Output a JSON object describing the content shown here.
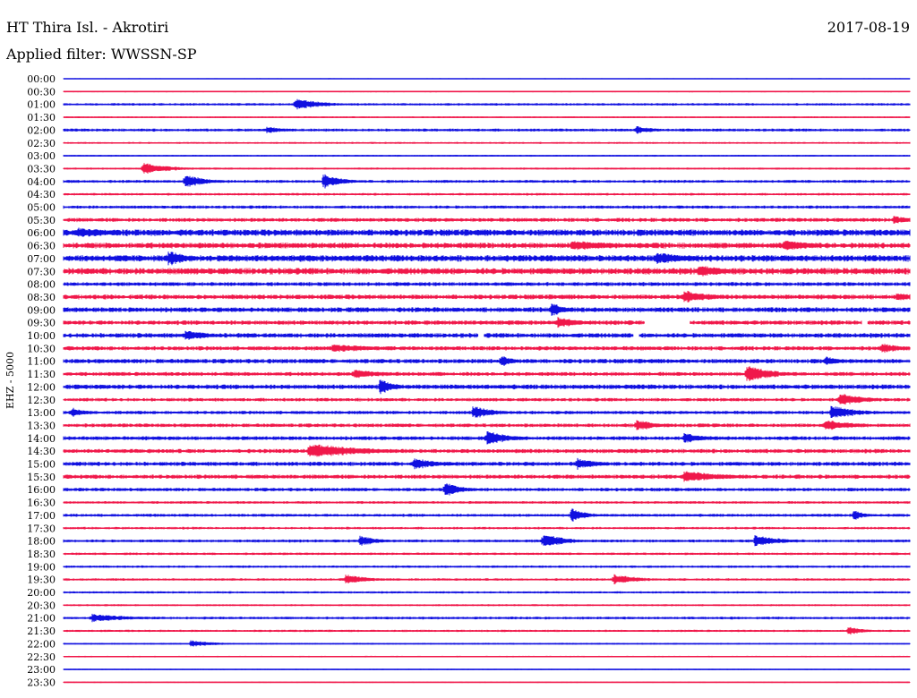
{
  "chart_data": {
    "type": "line",
    "title": "HT Thira Isl. - Akrotiri",
    "date": "2017-08-19",
    "subtitle": "Applied filter: WWSSN-SP",
    "ylabel": "EHZ - 5000",
    "grid": false,
    "colors": {
      "even": "#1010e0",
      "odd": "#f0184a",
      "text": "#000000"
    },
    "tick_labels": [
      "00:00",
      "00:30",
      "01:00",
      "01:30",
      "02:00",
      "02:30",
      "03:00",
      "03:30",
      "04:00",
      "04:30",
      "05:00",
      "05:30",
      "06:00",
      "06:30",
      "07:00",
      "07:30",
      "08:00",
      "08:30",
      "09:00",
      "09:30",
      "10:00",
      "10:30",
      "11:00",
      "11:30",
      "12:00",
      "12:30",
      "13:00",
      "13:30",
      "14:00",
      "14:30",
      "15:00",
      "15:30",
      "16:00",
      "16:30",
      "17:00",
      "17:30",
      "18:00",
      "18:30",
      "19:00",
      "19:30",
      "20:00",
      "20:30",
      "21:00",
      "21:30",
      "22:00",
      "22:30",
      "23:00",
      "23:30"
    ],
    "noise_level": [
      0.4,
      0.6,
      1.0,
      0.7,
      1.2,
      0.8,
      0.7,
      0.8,
      1.2,
      1.0,
      1.3,
      1.6,
      2.6,
      2.3,
      2.6,
      2.6,
      1.6,
      1.9,
      2.0,
      1.8,
      1.9,
      1.7,
      1.8,
      1.6,
      1.9,
      1.4,
      1.4,
      1.5,
      1.6,
      1.7,
      1.7,
      1.7,
      1.4,
      1.1,
      1.2,
      1.0,
      1.2,
      1.0,
      1.0,
      1.0,
      0.9,
      0.8,
      1.1,
      0.9,
      0.7,
      0.6,
      0.5,
      0.5
    ],
    "events": [
      {
        "trace": "01:00",
        "t": 8.2,
        "amp": 7,
        "dur": 1.0
      },
      {
        "trace": "02:00",
        "t": 7.2,
        "amp": 4,
        "dur": 0.8
      },
      {
        "trace": "02:00",
        "t": 20.3,
        "amp": 5,
        "dur": 0.7
      },
      {
        "trace": "03:30",
        "t": 2.8,
        "amp": 7,
        "dur": 1.0
      },
      {
        "trace": "04:00",
        "t": 4.3,
        "amp": 8,
        "dur": 0.8
      },
      {
        "trace": "04:00",
        "t": 9.2,
        "amp": 9,
        "dur": 0.7
      },
      {
        "trace": "05:30",
        "t": 29.4,
        "amp": 5,
        "dur": 0.8
      },
      {
        "trace": "06:00",
        "t": 0.5,
        "amp": 6,
        "dur": 1.5
      },
      {
        "trace": "06:30",
        "t": 18.0,
        "amp": 6,
        "dur": 2.0
      },
      {
        "trace": "06:30",
        "t": 25.5,
        "amp": 6,
        "dur": 1.5
      },
      {
        "trace": "07:00",
        "t": 3.7,
        "amp": 9,
        "dur": 0.8
      },
      {
        "trace": "07:00",
        "t": 21.0,
        "amp": 7,
        "dur": 1.5
      },
      {
        "trace": "07:30",
        "t": 22.5,
        "amp": 8,
        "dur": 1.0
      },
      {
        "trace": "08:30",
        "t": 22.0,
        "amp": 8,
        "dur": 1.0
      },
      {
        "trace": "08:30",
        "t": 29.5,
        "amp": 5,
        "dur": 1.0
      },
      {
        "trace": "09:00",
        "t": 17.3,
        "amp": 8,
        "dur": 0.6
      },
      {
        "trace": "09:30",
        "t": 17.5,
        "amp": 7,
        "dur": 0.8
      },
      {
        "trace": "10:00",
        "t": 4.3,
        "amp": 6,
        "dur": 1.0
      },
      {
        "trace": "10:30",
        "t": 9.5,
        "amp": 5,
        "dur": 2.0
      },
      {
        "trace": "10:30",
        "t": 29.0,
        "amp": 6,
        "dur": 0.8
      },
      {
        "trace": "11:00",
        "t": 15.5,
        "amp": 7,
        "dur": 0.5
      },
      {
        "trace": "11:00",
        "t": 27.0,
        "amp": 6,
        "dur": 0.6
      },
      {
        "trace": "11:30",
        "t": 10.3,
        "amp": 6,
        "dur": 1.0
      },
      {
        "trace": "11:30",
        "t": 24.2,
        "amp": 10,
        "dur": 1.0
      },
      {
        "trace": "12:00",
        "t": 11.2,
        "amp": 9,
        "dur": 0.6
      },
      {
        "trace": "12:30",
        "t": 27.5,
        "amp": 8,
        "dur": 1.0
      },
      {
        "trace": "13:00",
        "t": 0.3,
        "amp": 6,
        "dur": 0.5
      },
      {
        "trace": "13:00",
        "t": 14.5,
        "amp": 8,
        "dur": 0.8
      },
      {
        "trace": "13:00",
        "t": 27.2,
        "amp": 8,
        "dur": 1.0
      },
      {
        "trace": "13:30",
        "t": 20.3,
        "amp": 7,
        "dur": 0.8
      },
      {
        "trace": "13:30",
        "t": 27.0,
        "amp": 7,
        "dur": 1.0
      },
      {
        "trace": "14:00",
        "t": 15.0,
        "amp": 9,
        "dur": 0.8
      },
      {
        "trace": "14:00",
        "t": 22.0,
        "amp": 6,
        "dur": 1.0
      },
      {
        "trace": "14:30",
        "t": 8.7,
        "amp": 9,
        "dur": 2.0
      },
      {
        "trace": "15:00",
        "t": 12.4,
        "amp": 7,
        "dur": 1.0
      },
      {
        "trace": "15:00",
        "t": 18.2,
        "amp": 7,
        "dur": 0.8
      },
      {
        "trace": "15:30",
        "t": 22.0,
        "amp": 7,
        "dur": 1.5
      },
      {
        "trace": "16:00",
        "t": 13.5,
        "amp": 9,
        "dur": 0.6
      },
      {
        "trace": "17:00",
        "t": 18.0,
        "amp": 8,
        "dur": 0.6
      },
      {
        "trace": "17:00",
        "t": 28.0,
        "amp": 6,
        "dur": 0.5
      },
      {
        "trace": "18:00",
        "t": 10.5,
        "amp": 6,
        "dur": 0.8
      },
      {
        "trace": "18:00",
        "t": 17.0,
        "amp": 9,
        "dur": 0.8
      },
      {
        "trace": "18:00",
        "t": 24.5,
        "amp": 7,
        "dur": 1.0
      },
      {
        "trace": "19:30",
        "t": 10.0,
        "amp": 6,
        "dur": 0.8
      },
      {
        "trace": "19:30",
        "t": 19.5,
        "amp": 6,
        "dur": 1.0
      },
      {
        "trace": "21:00",
        "t": 1.0,
        "amp": 5,
        "dur": 1.5
      },
      {
        "trace": "21:30",
        "t": 27.8,
        "amp": 5,
        "dur": 0.6
      },
      {
        "trace": "22:00",
        "t": 4.5,
        "amp": 4,
        "dur": 1.0
      }
    ],
    "gaps": [
      {
        "trace": "09:30",
        "t0": 20.6,
        "t1": 22.2
      },
      {
        "trace": "09:30",
        "t0": 28.3,
        "t1": 28.5
      },
      {
        "trace": "10:00",
        "t0": 14.7,
        "t1": 14.9
      },
      {
        "trace": "10:00",
        "t0": 20.2,
        "t1": 20.4
      }
    ]
  }
}
